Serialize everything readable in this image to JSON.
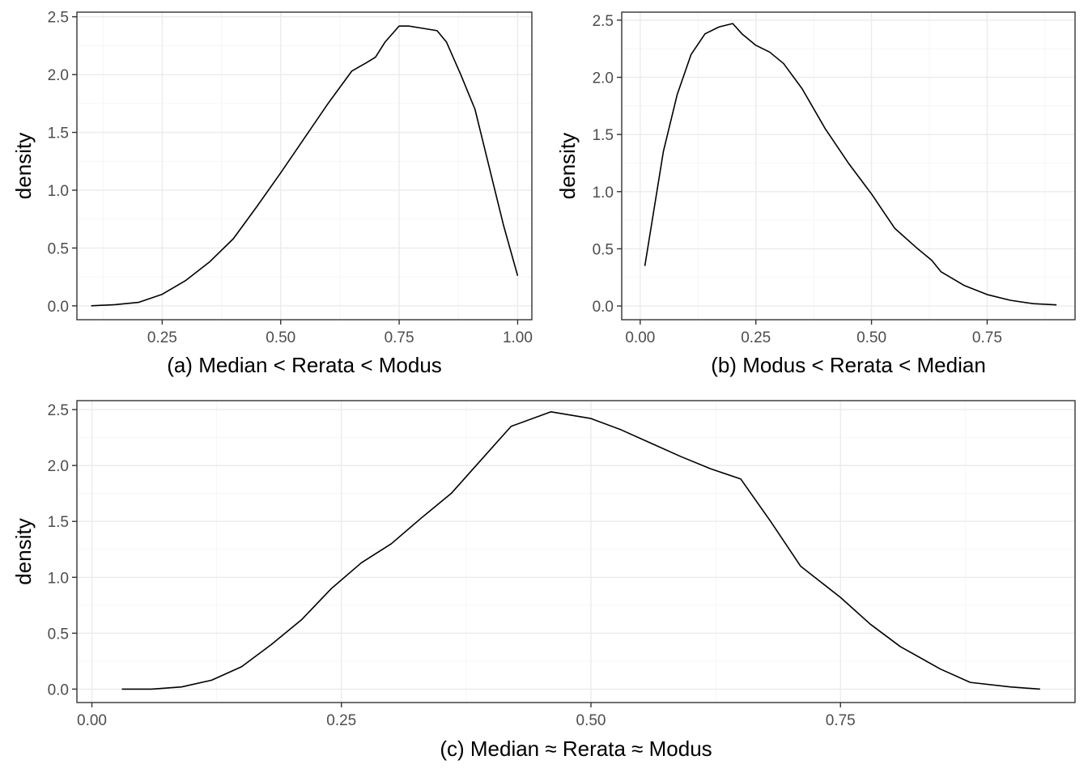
{
  "chart_data": [
    {
      "type": "line",
      "xlabel": "(a) Median < Rerata < Modus",
      "ylabel": "density",
      "xlim": [
        0.07,
        1.03
      ],
      "ylim": [
        -0.12,
        2.54
      ],
      "xticks": [
        0.25,
        0.5,
        0.75,
        1.0
      ],
      "xtick_labels": [
        "0.25",
        "0.50",
        "0.75",
        "1.00"
      ],
      "yticks": [
        0.0,
        0.5,
        1.0,
        1.5,
        2.0,
        2.5
      ],
      "ytick_labels": [
        "0.0",
        "0.5",
        "1.0",
        "1.5",
        "2.0",
        "2.5"
      ],
      "grid": true,
      "series": [
        {
          "x": [
            0.1,
            0.15,
            0.2,
            0.25,
            0.3,
            0.35,
            0.4,
            0.45,
            0.5,
            0.55,
            0.6,
            0.65,
            0.68,
            0.7,
            0.72,
            0.75,
            0.77,
            0.8,
            0.83,
            0.85,
            0.88,
            0.91,
            0.94,
            0.97,
            1.0
          ],
          "y": [
            0.0,
            0.01,
            0.03,
            0.1,
            0.22,
            0.38,
            0.58,
            0.86,
            1.15,
            1.45,
            1.75,
            2.03,
            2.1,
            2.15,
            2.28,
            2.42,
            2.42,
            2.4,
            2.38,
            2.28,
            2.0,
            1.7,
            1.2,
            0.7,
            0.26
          ]
        }
      ]
    },
    {
      "type": "line",
      "xlabel": "(b) Modus < Rerata < Median",
      "ylabel": "density",
      "xlim": [
        -0.04,
        0.94
      ],
      "ylim": [
        -0.12,
        2.57
      ],
      "xticks": [
        0.0,
        0.25,
        0.5,
        0.75
      ],
      "xtick_labels": [
        "0.00",
        "0.25",
        "0.50",
        "0.75"
      ],
      "yticks": [
        0.0,
        0.5,
        1.0,
        1.5,
        2.0,
        2.5
      ],
      "ytick_labels": [
        "0.0",
        "0.5",
        "1.0",
        "1.5",
        "2.0",
        "2.5"
      ],
      "grid": true,
      "series": [
        {
          "x": [
            0.01,
            0.03,
            0.05,
            0.08,
            0.11,
            0.14,
            0.17,
            0.2,
            0.22,
            0.25,
            0.28,
            0.31,
            0.35,
            0.4,
            0.45,
            0.5,
            0.55,
            0.6,
            0.63,
            0.65,
            0.7,
            0.75,
            0.8,
            0.85,
            0.9
          ],
          "y": [
            0.35,
            0.85,
            1.35,
            1.85,
            2.2,
            2.38,
            2.44,
            2.47,
            2.38,
            2.28,
            2.22,
            2.12,
            1.9,
            1.55,
            1.25,
            0.98,
            0.68,
            0.5,
            0.4,
            0.3,
            0.18,
            0.1,
            0.05,
            0.02,
            0.01
          ]
        }
      ]
    },
    {
      "type": "line",
      "xlabel": "(c) Median ≈ Rerata ≈ Modus",
      "ylabel": "density",
      "xlim": [
        -0.015,
        0.985
      ],
      "ylim": [
        -0.12,
        2.58
      ],
      "xticks": [
        0.0,
        0.25,
        0.5,
        0.75
      ],
      "xtick_labels": [
        "0.00",
        "0.25",
        "0.50",
        "0.75"
      ],
      "yticks": [
        0.0,
        0.5,
        1.0,
        1.5,
        2.0,
        2.5
      ],
      "ytick_labels": [
        "0.0",
        "0.5",
        "1.0",
        "1.5",
        "2.0",
        "2.5"
      ],
      "grid": true,
      "series": [
        {
          "x": [
            0.03,
            0.06,
            0.09,
            0.12,
            0.15,
            0.18,
            0.21,
            0.24,
            0.27,
            0.3,
            0.33,
            0.36,
            0.39,
            0.42,
            0.46,
            0.5,
            0.53,
            0.56,
            0.59,
            0.62,
            0.65,
            0.68,
            0.71,
            0.75,
            0.78,
            0.81,
            0.85,
            0.88,
            0.92,
            0.95
          ],
          "y": [
            0.0,
            0.0,
            0.02,
            0.08,
            0.2,
            0.4,
            0.62,
            0.9,
            1.13,
            1.3,
            1.53,
            1.75,
            2.05,
            2.35,
            2.48,
            2.42,
            2.32,
            2.2,
            2.08,
            1.97,
            1.88,
            1.5,
            1.1,
            0.82,
            0.58,
            0.38,
            0.18,
            0.06,
            0.02,
            0.0
          ]
        }
      ]
    }
  ]
}
